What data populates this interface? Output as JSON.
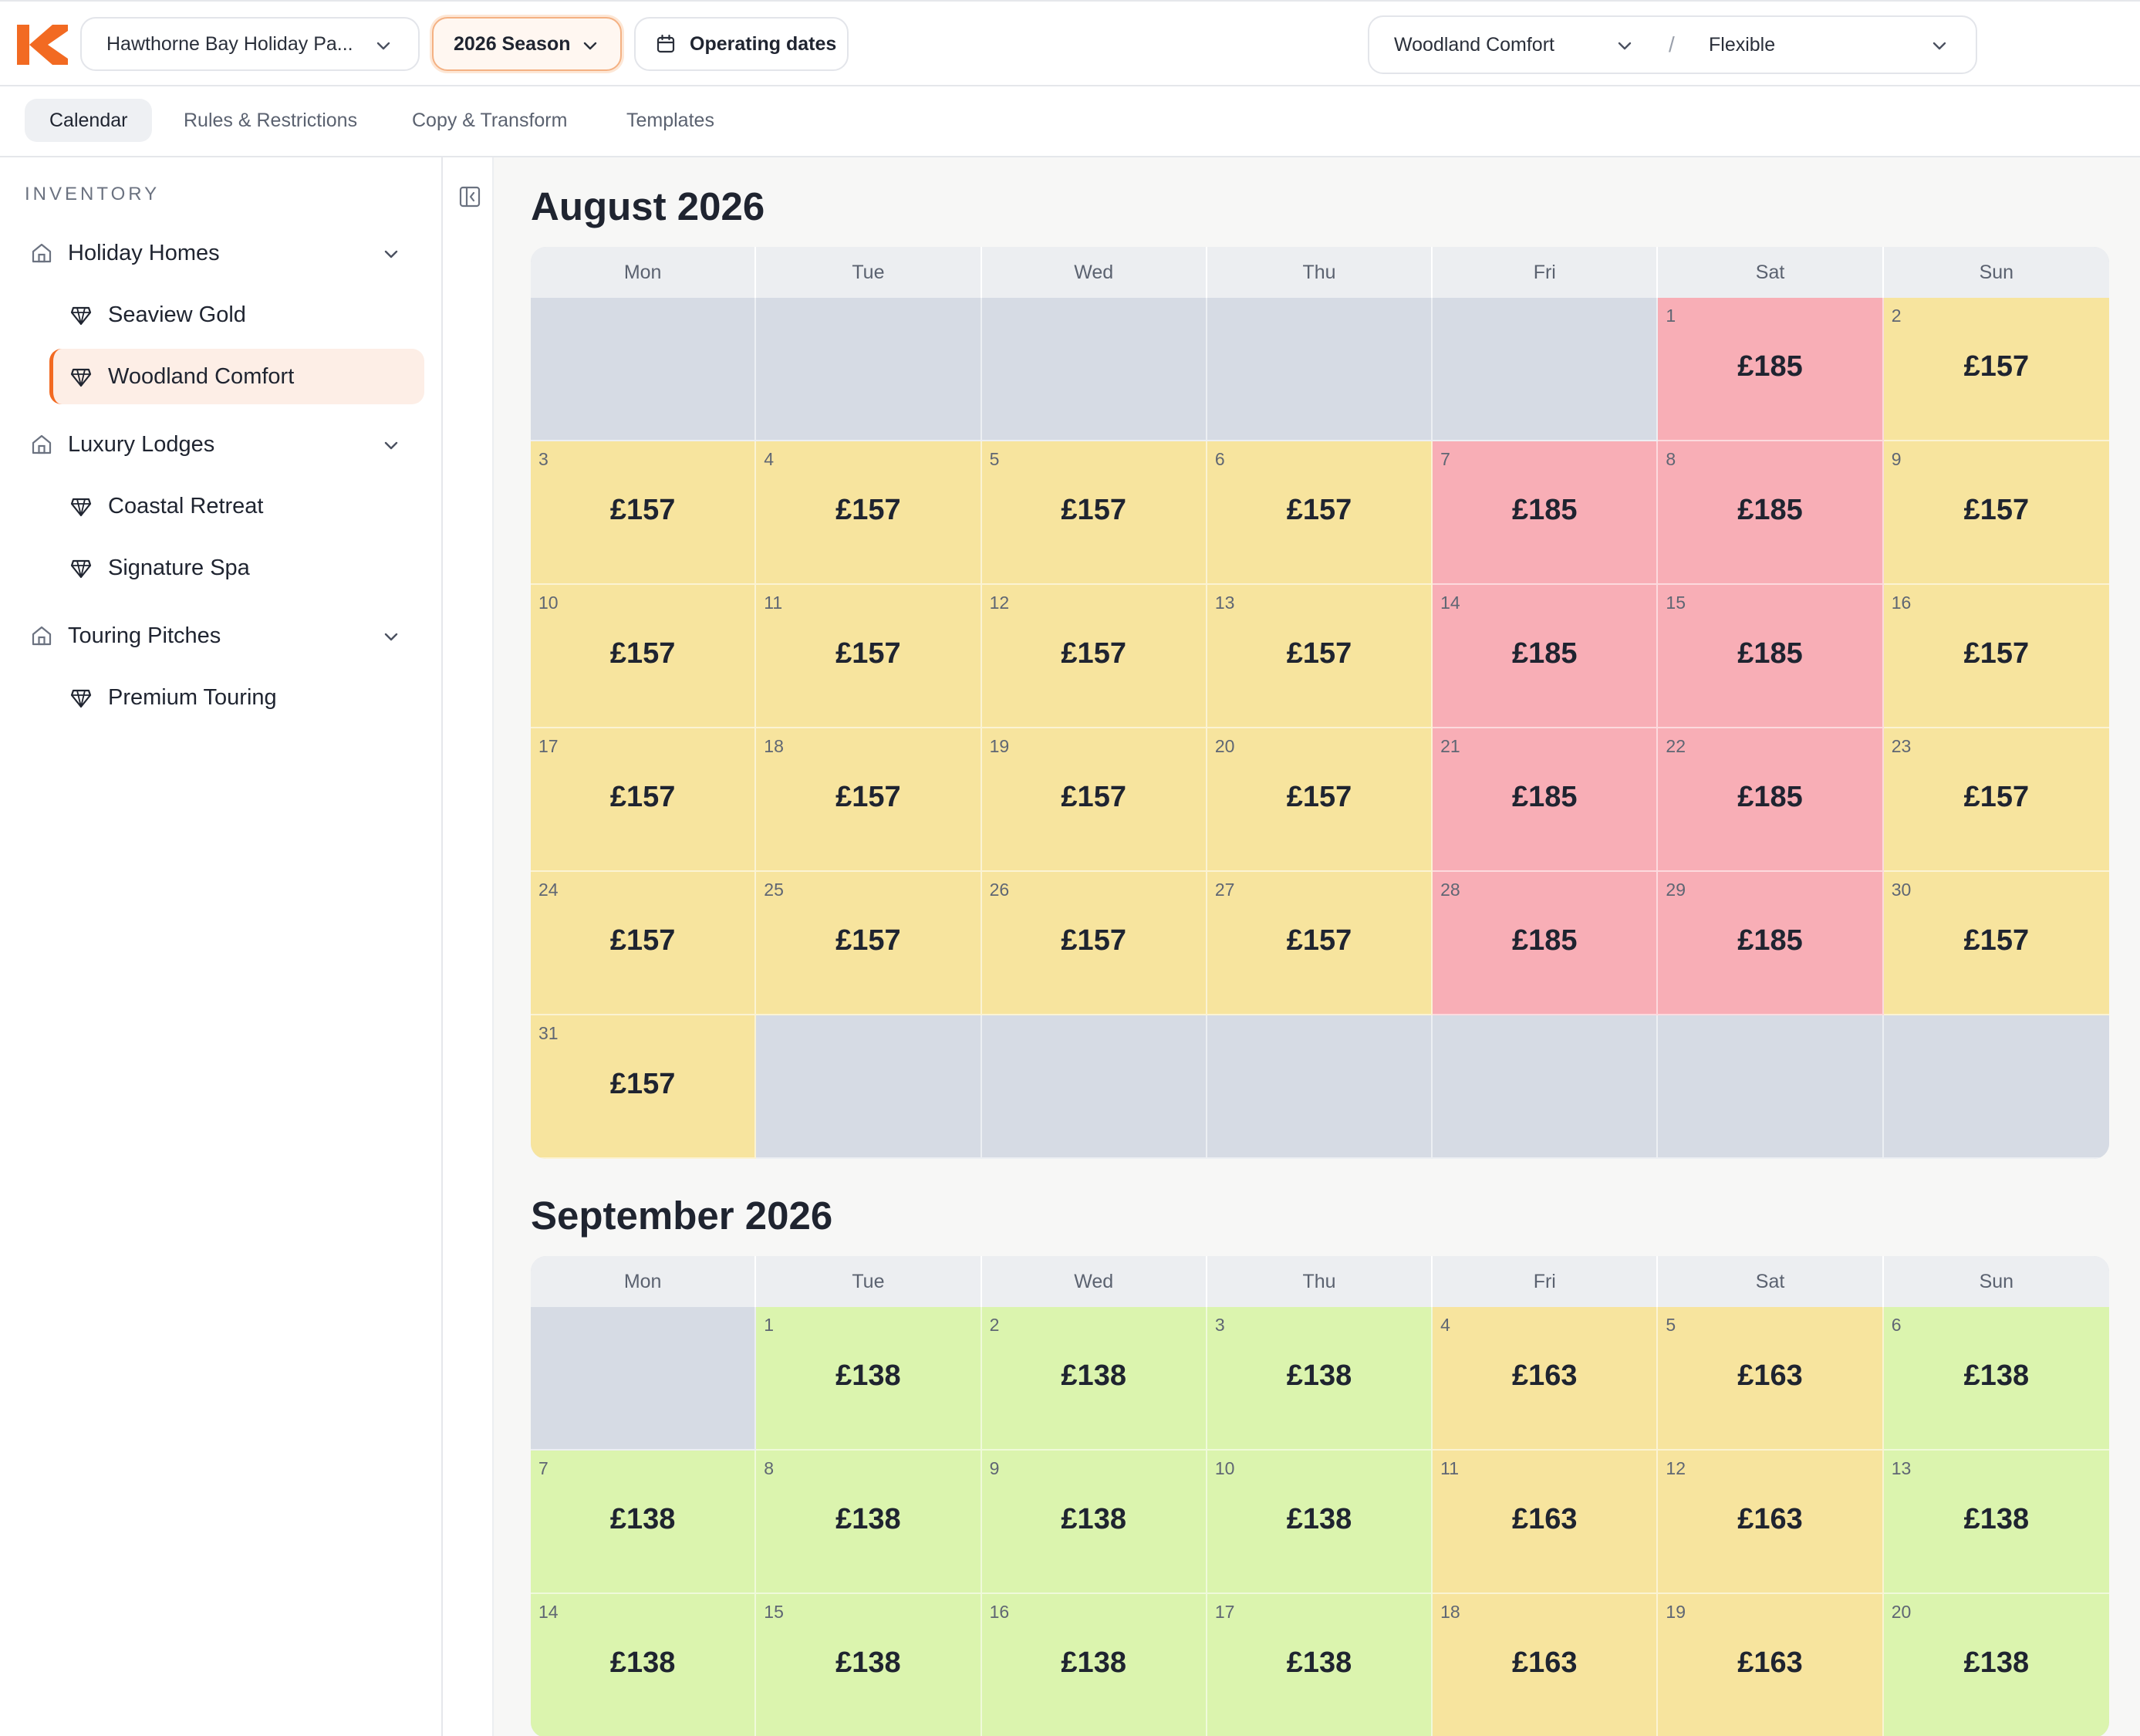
{
  "header": {
    "park_name": "Hawthorne Bay Holiday Pa...",
    "season": "2026 Season",
    "operating_dates": "Operating dates",
    "unit_selected": "Woodland Comfort",
    "rate_plan": "Flexible",
    "separator": "/"
  },
  "tabs": [
    {
      "label": "Calendar",
      "active": true
    },
    {
      "label": "Rules & Restrictions",
      "active": false
    },
    {
      "label": "Copy & Transform",
      "active": false
    },
    {
      "label": "Templates",
      "active": false
    }
  ],
  "sidebar": {
    "title": "INVENTORY",
    "groups": [
      {
        "label": "Holiday Homes",
        "icon": "home-icon",
        "units": [
          "Seaview Gold",
          "Woodland Comfort"
        ]
      },
      {
        "label": "Luxury Lodges",
        "icon": "home-icon",
        "units": [
          "Coastal Retreat",
          "Signature Spa"
        ]
      },
      {
        "label": "Touring Pitches",
        "icon": "home-icon",
        "units": [
          "Premium Touring"
        ]
      }
    ],
    "selected_unit": "Woodland Comfort"
  },
  "colors": {
    "accent": "#f26a22",
    "weekday_rate": "#f7e49e",
    "weekend_rate": "#f8aeb6",
    "low_rate": "#dbf4ae",
    "closed": "#d6dbe4"
  },
  "weekdays": [
    "Mon",
    "Tue",
    "Wed",
    "Thu",
    "Fri",
    "Sat",
    "Sun"
  ],
  "months": [
    {
      "title": "August 2026",
      "leading_blanks": 5,
      "trailing_blanks": 6,
      "days": [
        {
          "d": "1",
          "p": "£185",
          "t": "weekend"
        },
        {
          "d": "2",
          "p": "£157",
          "t": "weekday"
        },
        {
          "d": "3",
          "p": "£157",
          "t": "weekday"
        },
        {
          "d": "4",
          "p": "£157",
          "t": "weekday"
        },
        {
          "d": "5",
          "p": "£157",
          "t": "weekday"
        },
        {
          "d": "6",
          "p": "£157",
          "t": "weekday"
        },
        {
          "d": "7",
          "p": "£185",
          "t": "weekend"
        },
        {
          "d": "8",
          "p": "£185",
          "t": "weekend"
        },
        {
          "d": "9",
          "p": "£157",
          "t": "weekday"
        },
        {
          "d": "10",
          "p": "£157",
          "t": "weekday"
        },
        {
          "d": "11",
          "p": "£157",
          "t": "weekday"
        },
        {
          "d": "12",
          "p": "£157",
          "t": "weekday"
        },
        {
          "d": "13",
          "p": "£157",
          "t": "weekday"
        },
        {
          "d": "14",
          "p": "£185",
          "t": "weekend"
        },
        {
          "d": "15",
          "p": "£185",
          "t": "weekend"
        },
        {
          "d": "16",
          "p": "£157",
          "t": "weekday"
        },
        {
          "d": "17",
          "p": "£157",
          "t": "weekday"
        },
        {
          "d": "18",
          "p": "£157",
          "t": "weekday"
        },
        {
          "d": "19",
          "p": "£157",
          "t": "weekday"
        },
        {
          "d": "20",
          "p": "£157",
          "t": "weekday"
        },
        {
          "d": "21",
          "p": "£185",
          "t": "weekend"
        },
        {
          "d": "22",
          "p": "£185",
          "t": "weekend"
        },
        {
          "d": "23",
          "p": "£157",
          "t": "weekday"
        },
        {
          "d": "24",
          "p": "£157",
          "t": "weekday"
        },
        {
          "d": "25",
          "p": "£157",
          "t": "weekday"
        },
        {
          "d": "26",
          "p": "£157",
          "t": "weekday"
        },
        {
          "d": "27",
          "p": "£157",
          "t": "weekday"
        },
        {
          "d": "28",
          "p": "£185",
          "t": "weekend"
        },
        {
          "d": "29",
          "p": "£185",
          "t": "weekend"
        },
        {
          "d": "30",
          "p": "£157",
          "t": "weekday"
        },
        {
          "d": "31",
          "p": "£157",
          "t": "weekday"
        }
      ]
    },
    {
      "title": "September 2026",
      "leading_blanks": 1,
      "trailing_blanks": 0,
      "days": [
        {
          "d": "1",
          "p": "£138",
          "t": "low"
        },
        {
          "d": "2",
          "p": "£138",
          "t": "low"
        },
        {
          "d": "3",
          "p": "£138",
          "t": "low"
        },
        {
          "d": "4",
          "p": "£163",
          "t": "weekday"
        },
        {
          "d": "5",
          "p": "£163",
          "t": "weekday"
        },
        {
          "d": "6",
          "p": "£138",
          "t": "low"
        },
        {
          "d": "7",
          "p": "£138",
          "t": "low"
        },
        {
          "d": "8",
          "p": "£138",
          "t": "low"
        },
        {
          "d": "9",
          "p": "£138",
          "t": "low"
        },
        {
          "d": "10",
          "p": "£138",
          "t": "low"
        },
        {
          "d": "11",
          "p": "£163",
          "t": "weekday"
        },
        {
          "d": "12",
          "p": "£163",
          "t": "weekday"
        },
        {
          "d": "13",
          "p": "£138",
          "t": "low"
        },
        {
          "d": "14",
          "p": "£138",
          "t": "low"
        },
        {
          "d": "15",
          "p": "£138",
          "t": "low"
        },
        {
          "d": "16",
          "p": "£138",
          "t": "low"
        },
        {
          "d": "17",
          "p": "£138",
          "t": "low"
        },
        {
          "d": "18",
          "p": "£163",
          "t": "weekday"
        },
        {
          "d": "19",
          "p": "£163",
          "t": "weekday"
        },
        {
          "d": "20",
          "p": "£138",
          "t": "low"
        }
      ]
    }
  ]
}
